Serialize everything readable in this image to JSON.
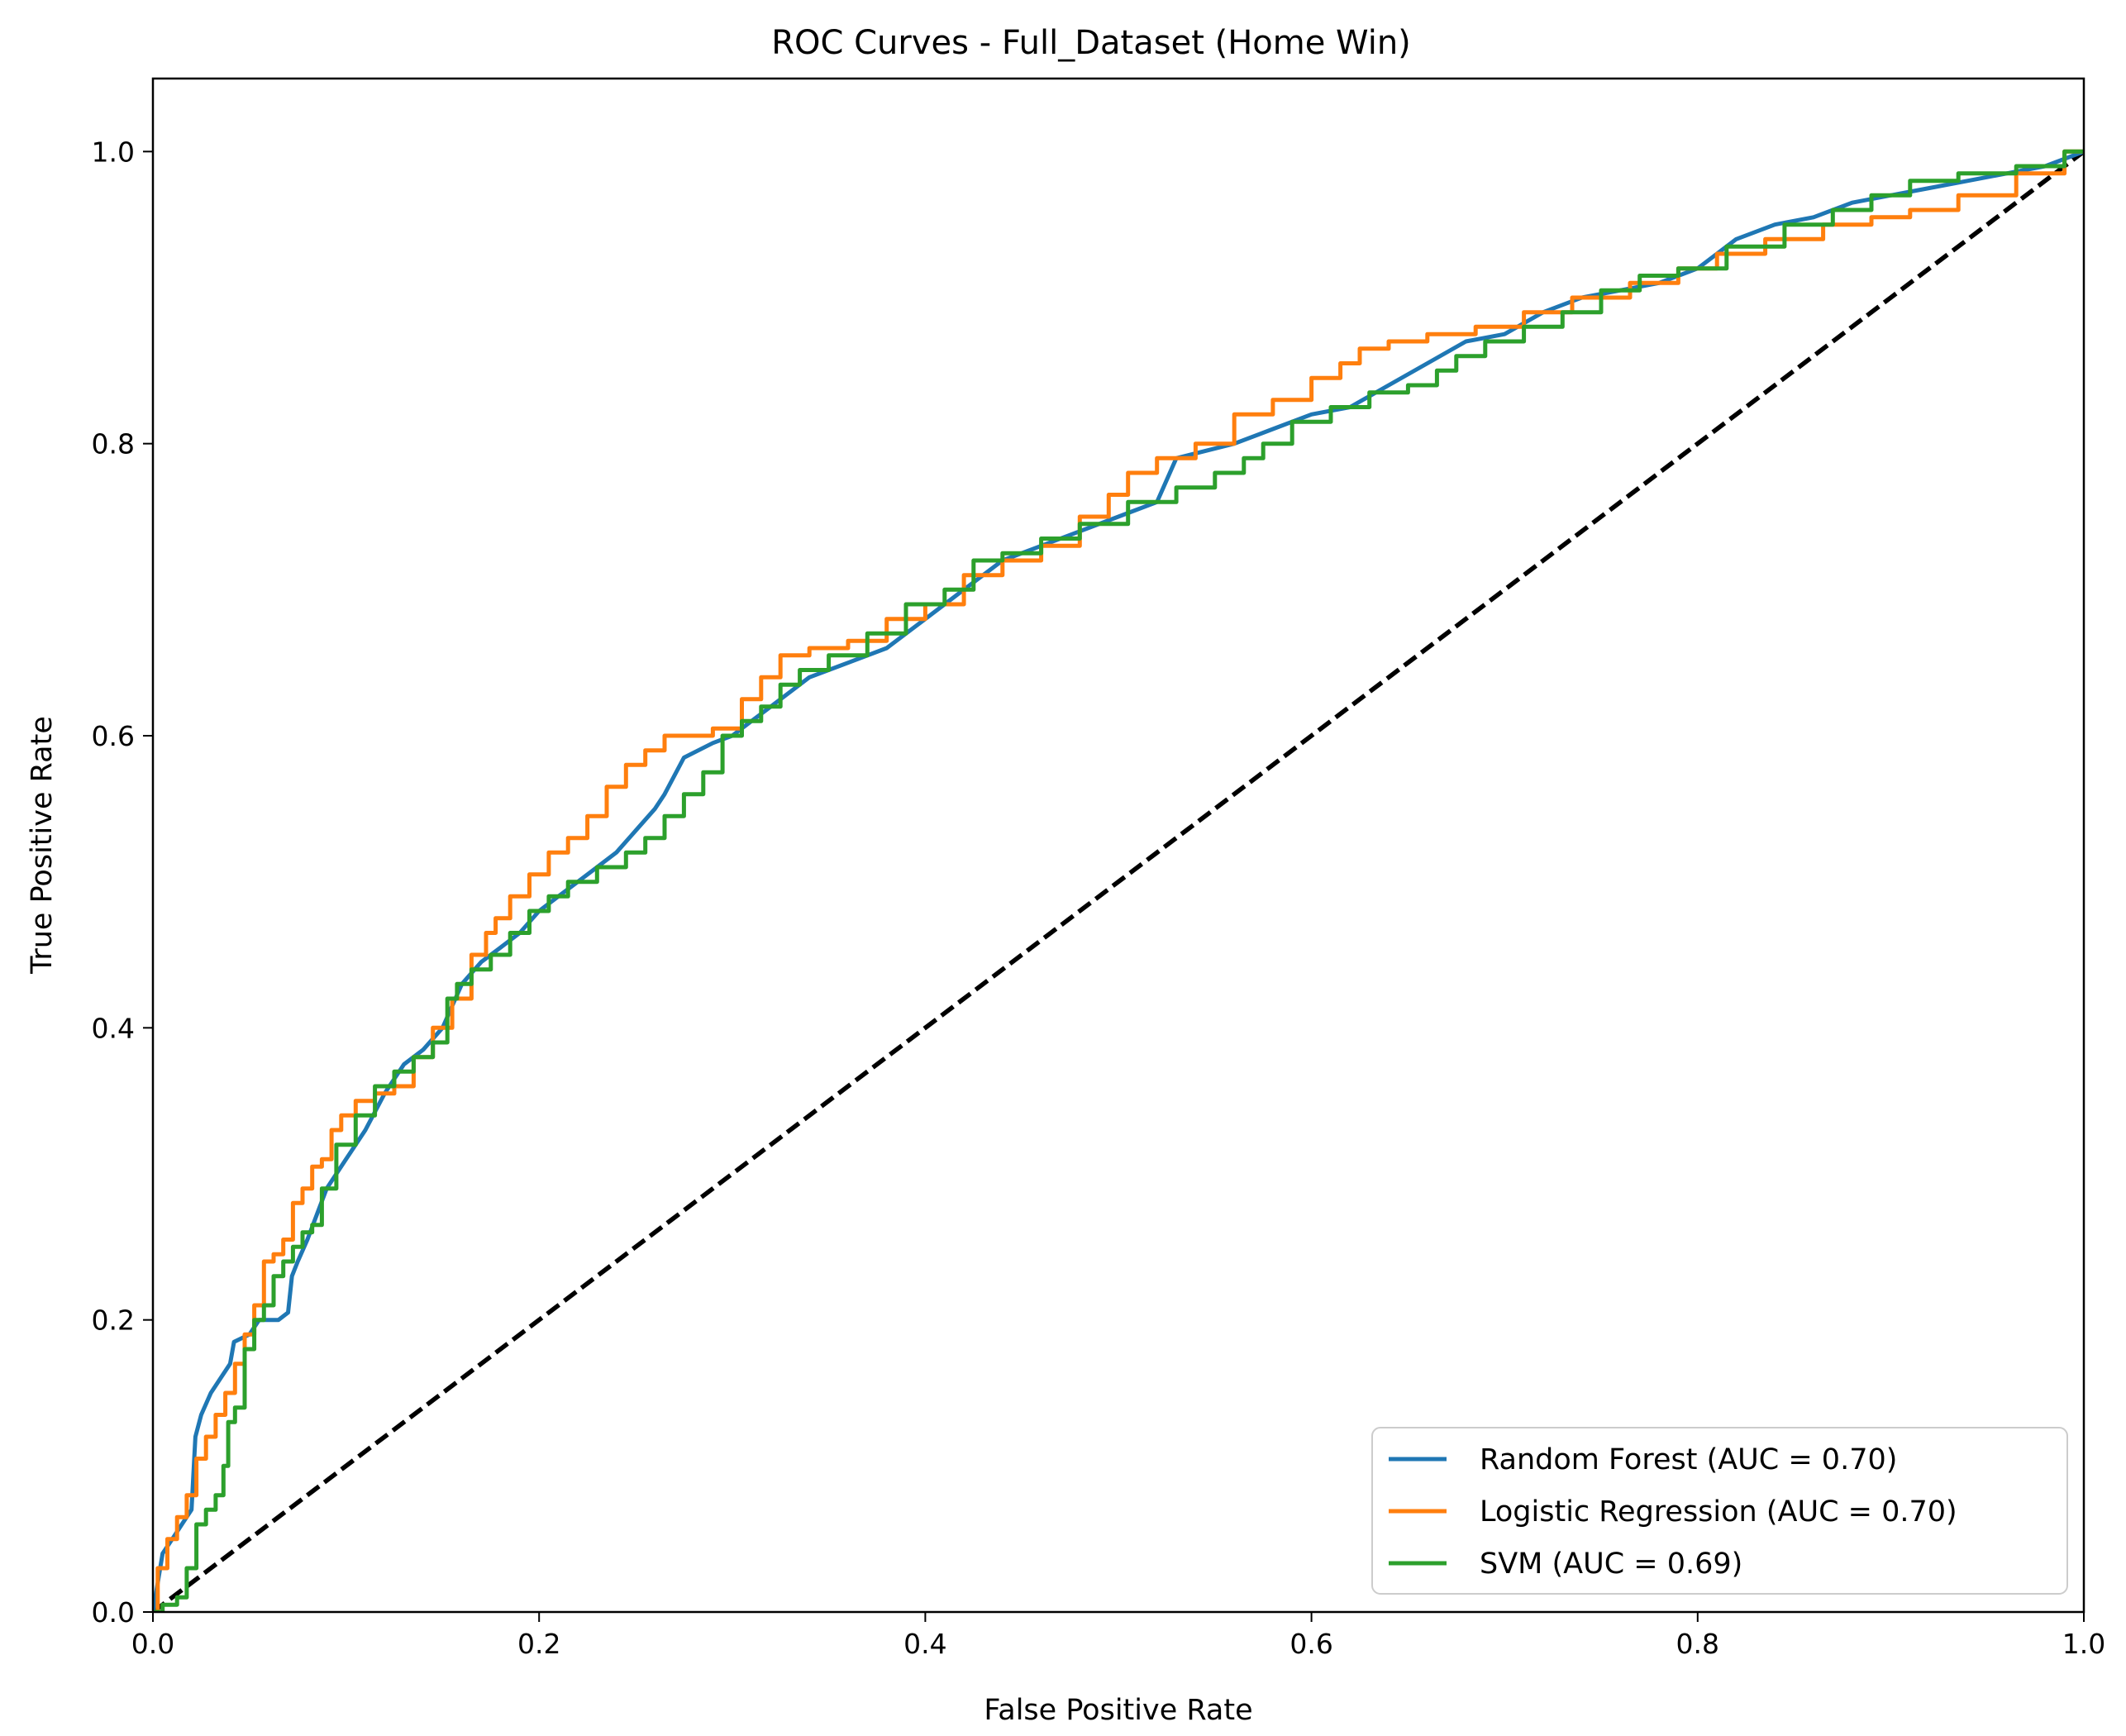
{
  "chart_data": {
    "type": "line",
    "title": "ROC Curves - Full_Dataset (Home Win)",
    "xlabel": "False Positive Rate",
    "ylabel": "True Positive Rate",
    "xlim": [
      0.0,
      1.0
    ],
    "ylim": [
      0.0,
      1.05
    ],
    "xticks": [
      "0.0",
      "0.2",
      "0.4",
      "0.6",
      "0.8",
      "1.0"
    ],
    "yticks": [
      "0.0",
      "0.2",
      "0.4",
      "0.6",
      "0.8",
      "1.0"
    ],
    "grid": false,
    "legend_position": "lower-right",
    "series": [
      {
        "name": "Random Forest (AUC = 0.70)",
        "color": "#1f77b4",
        "style": "solid",
        "points": [
          [
            0,
            0
          ],
          [
            0.005,
            0.04
          ],
          [
            0.01,
            0.05
          ],
          [
            0.015,
            0.06
          ],
          [
            0.02,
            0.07
          ],
          [
            0.022,
            0.12
          ],
          [
            0.025,
            0.135
          ],
          [
            0.03,
            0.15
          ],
          [
            0.035,
            0.16
          ],
          [
            0.04,
            0.17
          ],
          [
            0.042,
            0.185
          ],
          [
            0.05,
            0.19
          ],
          [
            0.055,
            0.2
          ],
          [
            0.06,
            0.2
          ],
          [
            0.065,
            0.2
          ],
          [
            0.07,
            0.205
          ],
          [
            0.072,
            0.23
          ],
          [
            0.075,
            0.24
          ],
          [
            0.08,
            0.255
          ],
          [
            0.09,
            0.29
          ],
          [
            0.1,
            0.31
          ],
          [
            0.11,
            0.33
          ],
          [
            0.12,
            0.355
          ],
          [
            0.13,
            0.375
          ],
          [
            0.14,
            0.385
          ],
          [
            0.15,
            0.4
          ],
          [
            0.16,
            0.43
          ],
          [
            0.17,
            0.445
          ],
          [
            0.18,
            0.455
          ],
          [
            0.19,
            0.465
          ],
          [
            0.2,
            0.48
          ],
          [
            0.21,
            0.49
          ],
          [
            0.22,
            0.5
          ],
          [
            0.23,
            0.51
          ],
          [
            0.24,
            0.52
          ],
          [
            0.25,
            0.535
          ],
          [
            0.26,
            0.55
          ],
          [
            0.265,
            0.56
          ],
          [
            0.275,
            0.585
          ],
          [
            0.29,
            0.595
          ],
          [
            0.3,
            0.6
          ],
          [
            0.31,
            0.61
          ],
          [
            0.32,
            0.62
          ],
          [
            0.33,
            0.63
          ],
          [
            0.34,
            0.64
          ],
          [
            0.36,
            0.65
          ],
          [
            0.38,
            0.66
          ],
          [
            0.4,
            0.68
          ],
          [
            0.42,
            0.7
          ],
          [
            0.44,
            0.72
          ],
          [
            0.46,
            0.73
          ],
          [
            0.48,
            0.74
          ],
          [
            0.5,
            0.75
          ],
          [
            0.52,
            0.76
          ],
          [
            0.53,
            0.79
          ],
          [
            0.56,
            0.8
          ],
          [
            0.58,
            0.81
          ],
          [
            0.6,
            0.82
          ],
          [
            0.62,
            0.825
          ],
          [
            0.64,
            0.84
          ],
          [
            0.66,
            0.855
          ],
          [
            0.68,
            0.87
          ],
          [
            0.7,
            0.875
          ],
          [
            0.72,
            0.89
          ],
          [
            0.74,
            0.9
          ],
          [
            0.76,
            0.905
          ],
          [
            0.78,
            0.91
          ],
          [
            0.8,
            0.92
          ],
          [
            0.82,
            0.94
          ],
          [
            0.84,
            0.95
          ],
          [
            0.86,
            0.955
          ],
          [
            0.88,
            0.965
          ],
          [
            0.9,
            0.97
          ],
          [
            0.92,
            0.975
          ],
          [
            0.94,
            0.98
          ],
          [
            0.96,
            0.985
          ],
          [
            0.98,
            0.99
          ],
          [
            1,
            1
          ]
        ]
      },
      {
        "name": "Logistic Regression (AUC = 0.70)",
        "color": "#ff7f0e",
        "style": "step",
        "points": [
          [
            0,
            0
          ],
          [
            0.005,
            0.03
          ],
          [
            0.01,
            0.05
          ],
          [
            0.015,
            0.065
          ],
          [
            0.02,
            0.08
          ],
          [
            0.025,
            0.105
          ],
          [
            0.03,
            0.12
          ],
          [
            0.035,
            0.135
          ],
          [
            0.04,
            0.15
          ],
          [
            0.045,
            0.17
          ],
          [
            0.05,
            0.19
          ],
          [
            0.055,
            0.21
          ],
          [
            0.06,
            0.24
          ],
          [
            0.065,
            0.245
          ],
          [
            0.07,
            0.255
          ],
          [
            0.075,
            0.28
          ],
          [
            0.08,
            0.29
          ],
          [
            0.085,
            0.305
          ],
          [
            0.09,
            0.31
          ],
          [
            0.095,
            0.33
          ],
          [
            0.1,
            0.34
          ],
          [
            0.11,
            0.35
          ],
          [
            0.12,
            0.355
          ],
          [
            0.13,
            0.36
          ],
          [
            0.14,
            0.38
          ],
          [
            0.15,
            0.4
          ],
          [
            0.16,
            0.42
          ],
          [
            0.17,
            0.45
          ],
          [
            0.175,
            0.465
          ],
          [
            0.18,
            0.475
          ],
          [
            0.19,
            0.49
          ],
          [
            0.2,
            0.505
          ],
          [
            0.21,
            0.52
          ],
          [
            0.22,
            0.53
          ],
          [
            0.23,
            0.545
          ],
          [
            0.24,
            0.565
          ],
          [
            0.25,
            0.58
          ],
          [
            0.26,
            0.59
          ],
          [
            0.27,
            0.6
          ],
          [
            0.28,
            0.6
          ],
          [
            0.3,
            0.605
          ],
          [
            0.31,
            0.625
          ],
          [
            0.32,
            0.64
          ],
          [
            0.33,
            0.655
          ],
          [
            0.35,
            0.66
          ],
          [
            0.37,
            0.665
          ],
          [
            0.39,
            0.68
          ],
          [
            0.41,
            0.69
          ],
          [
            0.43,
            0.71
          ],
          [
            0.45,
            0.72
          ],
          [
            0.47,
            0.73
          ],
          [
            0.49,
            0.75
          ],
          [
            0.5,
            0.765
          ],
          [
            0.51,
            0.78
          ],
          [
            0.53,
            0.79
          ],
          [
            0.55,
            0.8
          ],
          [
            0.57,
            0.82
          ],
          [
            0.59,
            0.83
          ],
          [
            0.61,
            0.845
          ],
          [
            0.62,
            0.855
          ],
          [
            0.63,
            0.865
          ],
          [
            0.65,
            0.87
          ],
          [
            0.67,
            0.875
          ],
          [
            0.7,
            0.88
          ],
          [
            0.72,
            0.89
          ],
          [
            0.75,
            0.9
          ],
          [
            0.78,
            0.91
          ],
          [
            0.8,
            0.92
          ],
          [
            0.82,
            0.93
          ],
          [
            0.85,
            0.94
          ],
          [
            0.88,
            0.95
          ],
          [
            0.9,
            0.955
          ],
          [
            0.92,
            0.96
          ],
          [
            0.95,
            0.97
          ],
          [
            0.98,
            0.985
          ],
          [
            1,
            1
          ]
        ]
      },
      {
        "name": "SVM (AUC = 0.69)",
        "color": "#2ca02c",
        "style": "step",
        "points": [
          [
            0,
            0
          ],
          [
            0.01,
            0.005
          ],
          [
            0.015,
            0.01
          ],
          [
            0.02,
            0.03
          ],
          [
            0.025,
            0.06
          ],
          [
            0.03,
            0.07
          ],
          [
            0.035,
            0.08
          ],
          [
            0.038,
            0.1
          ],
          [
            0.04,
            0.13
          ],
          [
            0.045,
            0.14
          ],
          [
            0.05,
            0.18
          ],
          [
            0.055,
            0.2
          ],
          [
            0.06,
            0.21
          ],
          [
            0.065,
            0.23
          ],
          [
            0.07,
            0.24
          ],
          [
            0.075,
            0.25
          ],
          [
            0.08,
            0.26
          ],
          [
            0.085,
            0.265
          ],
          [
            0.09,
            0.29
          ],
          [
            0.1,
            0.32
          ],
          [
            0.11,
            0.34
          ],
          [
            0.12,
            0.36
          ],
          [
            0.13,
            0.37
          ],
          [
            0.14,
            0.38
          ],
          [
            0.15,
            0.39
          ],
          [
            0.155,
            0.42
          ],
          [
            0.16,
            0.43
          ],
          [
            0.17,
            0.44
          ],
          [
            0.18,
            0.45
          ],
          [
            0.19,
            0.465
          ],
          [
            0.2,
            0.48
          ],
          [
            0.21,
            0.49
          ],
          [
            0.22,
            0.5
          ],
          [
            0.24,
            0.51
          ],
          [
            0.25,
            0.52
          ],
          [
            0.26,
            0.53
          ],
          [
            0.27,
            0.545
          ],
          [
            0.28,
            0.56
          ],
          [
            0.29,
            0.575
          ],
          [
            0.3,
            0.6
          ],
          [
            0.31,
            0.61
          ],
          [
            0.32,
            0.62
          ],
          [
            0.33,
            0.635
          ],
          [
            0.34,
            0.645
          ],
          [
            0.36,
            0.655
          ],
          [
            0.38,
            0.67
          ],
          [
            0.4,
            0.69
          ],
          [
            0.42,
            0.7
          ],
          [
            0.43,
            0.72
          ],
          [
            0.45,
            0.725
          ],
          [
            0.47,
            0.735
          ],
          [
            0.49,
            0.745
          ],
          [
            0.52,
            0.76
          ],
          [
            0.54,
            0.77
          ],
          [
            0.56,
            0.78
          ],
          [
            0.57,
            0.79
          ],
          [
            0.58,
            0.8
          ],
          [
            0.6,
            0.815
          ],
          [
            0.62,
            0.825
          ],
          [
            0.64,
            0.835
          ],
          [
            0.66,
            0.84
          ],
          [
            0.67,
            0.85
          ],
          [
            0.68,
            0.86
          ],
          [
            0.7,
            0.87
          ],
          [
            0.72,
            0.88
          ],
          [
            0.74,
            0.89
          ],
          [
            0.76,
            0.905
          ],
          [
            0.78,
            0.915
          ],
          [
            0.8,
            0.92
          ],
          [
            0.83,
            0.935
          ],
          [
            0.86,
            0.95
          ],
          [
            0.88,
            0.96
          ],
          [
            0.9,
            0.97
          ],
          [
            0.92,
            0.98
          ],
          [
            0.95,
            0.985
          ],
          [
            0.98,
            0.99
          ],
          [
            1,
            1
          ]
        ]
      },
      {
        "name": "",
        "color": "#000000",
        "style": "dashed",
        "points": [
          [
            0,
            0
          ],
          [
            1,
            1
          ]
        ]
      }
    ]
  }
}
